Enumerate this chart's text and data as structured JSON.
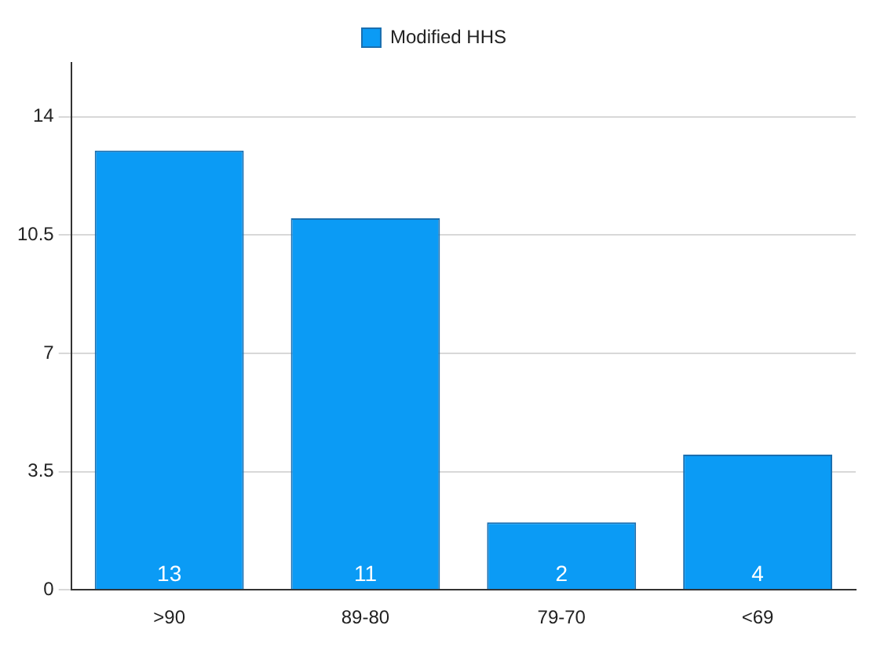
{
  "chart_data": {
    "type": "bar",
    "categories": [
      ">90",
      "89-80",
      "79-70",
      "<69"
    ],
    "series": [
      {
        "name": "Modified HHS",
        "color": "#0b9bf5",
        "values": [
          13,
          11,
          2,
          4
        ]
      }
    ],
    "ylim": [
      0,
      15.6
    ],
    "yticks": [
      0,
      3.5,
      7,
      10.5,
      14
    ],
    "grid": "y",
    "legend": "top",
    "data_labels": true
  }
}
